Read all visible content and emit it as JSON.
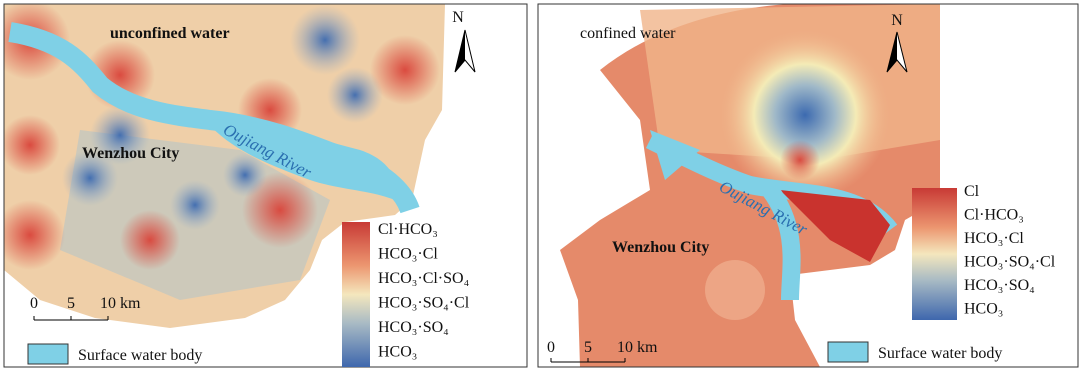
{
  "panels": [
    {
      "title": "unconfined water",
      "city": "Wenzhou City",
      "river": "Oujiang River",
      "north": "N",
      "scale": [
        "0",
        "5",
        "10 km"
      ],
      "legend": [
        "Cl·HCO₃",
        "HCO₃·Cl",
        "HCO₃·Cl·SO₄",
        "HCO₃·SO₄·Cl",
        "HCO₃·SO₄",
        "HCO₃"
      ],
      "water_legend": "Surface water body"
    },
    {
      "title": "confined water",
      "city": "Wenzhou City",
      "river": "Oujiang River",
      "north": "N",
      "scale": [
        "0",
        "5",
        "10 km"
      ],
      "legend": [
        "Cl",
        "Cl·HCO₃",
        "HCO₃·Cl",
        "HCO₃·SO₄·Cl",
        "HCO₃·SO₄",
        "HCO₃"
      ],
      "water_legend": "Surface water body"
    }
  ]
}
